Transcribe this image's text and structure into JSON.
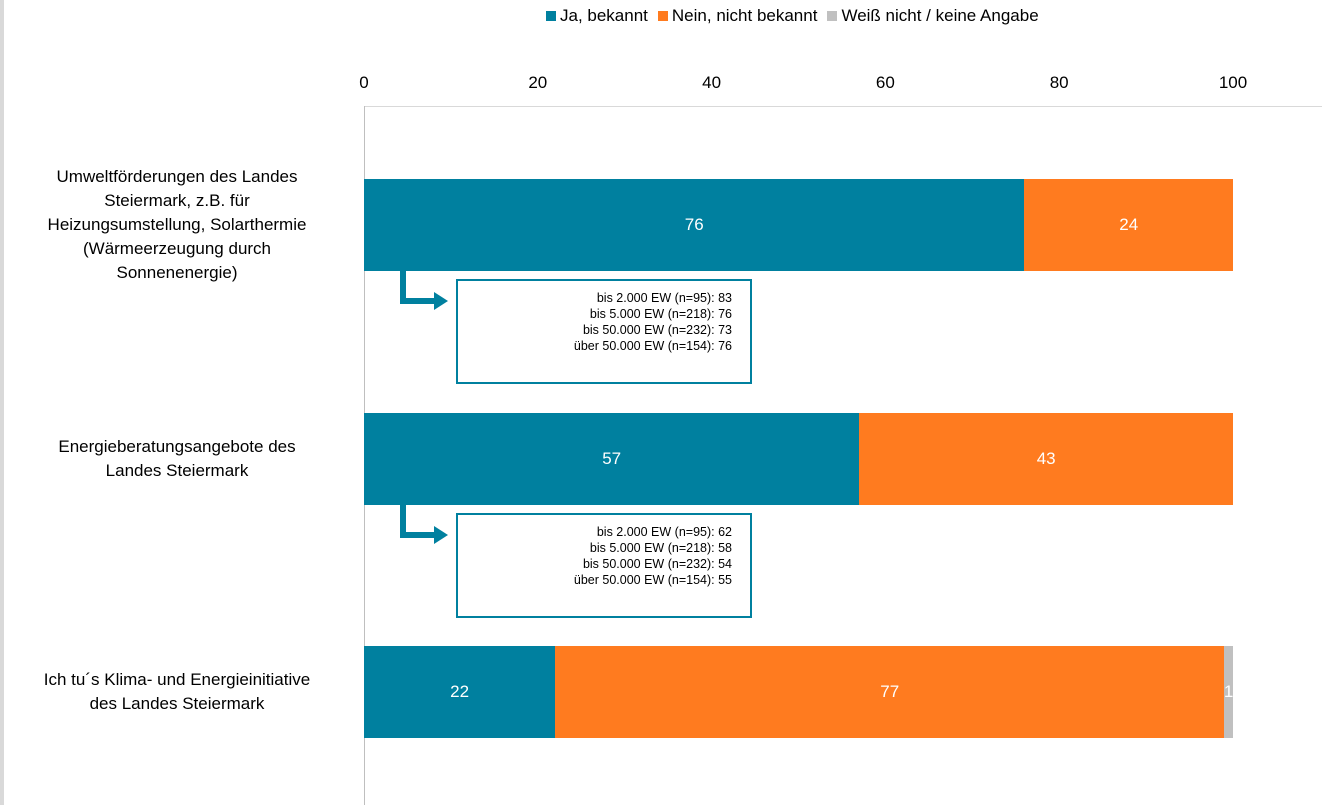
{
  "chart_data": {
    "type": "bar",
    "orientation": "horizontal",
    "stacked": true,
    "x_ticks": [
      "0",
      "20",
      "40",
      "60",
      "80",
      "100"
    ],
    "xlim": [
      0,
      100
    ],
    "legend_position": "top",
    "categories": [
      "Umweltförderungen des Landes Steiermark, z.B. für Heizungsumstellung, Solarthermie (Wärmeerzeugung durch Sonnenenergie)",
      "Energieberatungsangebote des Landes Steiermark",
      "Ich tu´s Klima- und Energieinitiative des Landes Steiermark"
    ],
    "category_lines": [
      [
        "Umweltförderungen des Landes",
        "Steiermark, z.B. für",
        "Heizungsumstellung, Solarthermie",
        "(Wärmeerzeugung durch",
        "Sonnenenergie)"
      ],
      [
        "Energieberatungsangebote des",
        "Landes Steiermark"
      ],
      [
        "Ich tu´s Klima- und Energieinitiative",
        "des Landes Steiermark"
      ]
    ],
    "series": [
      {
        "name": "Ja, bekannt",
        "color": "#00809f",
        "values": [
          76,
          57,
          22
        ],
        "labels": [
          "76",
          "57",
          "22"
        ]
      },
      {
        "name": "Nein, nicht bekannt",
        "color": "#ff7b1f",
        "values": [
          24,
          43,
          77
        ],
        "labels": [
          "24",
          "43",
          "77"
        ]
      },
      {
        "name": "Weiß nicht / keine Angabe",
        "color": "#c0c0c0",
        "values": [
          0,
          0,
          1
        ],
        "labels": [
          "",
          "",
          "1"
        ]
      }
    ],
    "callouts": [
      {
        "category_index": 0,
        "lines": [
          "bis 2.000 EW (n=95): 83",
          "bis 5.000 EW (n=218): 76",
          "bis 50.000 EW (n=232): 73",
          "über 50.000 EW (n=154): 76"
        ]
      },
      {
        "category_index": 1,
        "lines": [
          "bis 2.000 EW (n=95): 62",
          "bis 5.000 EW (n=218): 58",
          "bis 50.000 EW (n=232): 54",
          "über 50.000 EW (n=154): 55"
        ]
      }
    ]
  }
}
